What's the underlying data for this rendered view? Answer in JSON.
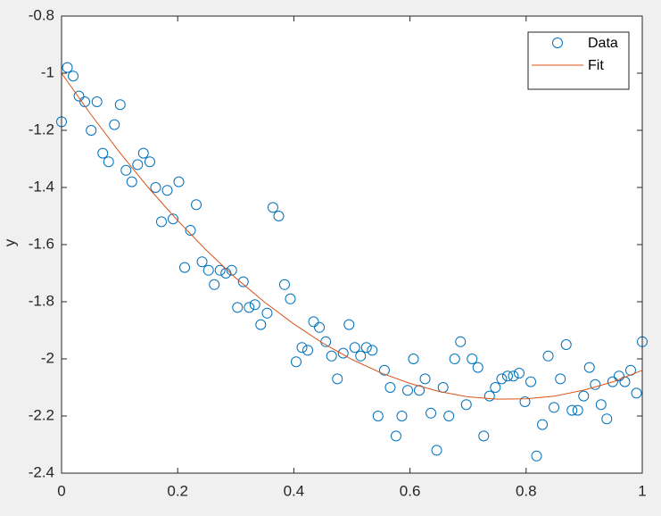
{
  "chart_data": {
    "type": "scatter",
    "ylabel": "y",
    "xlim": [
      0,
      1
    ],
    "ylim": [
      -2.4,
      -0.8
    ],
    "xticks": [
      0,
      0.2,
      0.4,
      0.6,
      0.8,
      1
    ],
    "yticks": [
      -2.4,
      -2.2,
      -2,
      -1.8,
      -1.6,
      -1.4,
      -1.2,
      -1,
      -0.8
    ],
    "grid": false,
    "legend": "northeast",
    "series": [
      {
        "name": "Data",
        "color": "#0072bd",
        "type": "scatter",
        "x": [
          0,
          0.01,
          0.02,
          0.03,
          0.04,
          0.051,
          0.061,
          0.071,
          0.081,
          0.091,
          0.101,
          0.111,
          0.121,
          0.131,
          0.141,
          0.152,
          0.162,
          0.172,
          0.182,
          0.192,
          0.202,
          0.212,
          0.222,
          0.232,
          0.242,
          0.253,
          0.263,
          0.273,
          0.283,
          0.293,
          0.303,
          0.313,
          0.323,
          0.333,
          0.343,
          0.354,
          0.364,
          0.374,
          0.384,
          0.394,
          0.404,
          0.414,
          0.424,
          0.434,
          0.444,
          0.455,
          0.465,
          0.475,
          0.485,
          0.495,
          0.505,
          0.515,
          0.525,
          0.535,
          0.545,
          0.556,
          0.566,
          0.576,
          0.586,
          0.596,
          0.606,
          0.616,
          0.626,
          0.636,
          0.646,
          0.657,
          0.667,
          0.677,
          0.687,
          0.697,
          0.707,
          0.717,
          0.727,
          0.737,
          0.747,
          0.758,
          0.768,
          0.778,
          0.788,
          0.798,
          0.808,
          0.818,
          0.828,
          0.838,
          0.848,
          0.859,
          0.869,
          0.879,
          0.889,
          0.899,
          0.909,
          0.919,
          0.929,
          0.939,
          0.949,
          0.96,
          0.97,
          0.98,
          0.99,
          1
        ],
        "values": [
          -1.17,
          -0.98,
          -1.01,
          -1.08,
          -1.1,
          -1.2,
          -1.1,
          -1.28,
          -1.31,
          -1.18,
          -1.11,
          -1.34,
          -1.38,
          -1.32,
          -1.28,
          -1.31,
          -1.4,
          -1.52,
          -1.41,
          -1.51,
          -1.38,
          -1.68,
          -1.55,
          -1.46,
          -1.66,
          -1.69,
          -1.74,
          -1.69,
          -1.7,
          -1.69,
          -1.82,
          -1.73,
          -1.82,
          -1.81,
          -1.88,
          -1.84,
          -1.47,
          -1.5,
          -1.74,
          -1.79,
          -2.01,
          -1.96,
          -1.97,
          -1.87,
          -1.89,
          -1.94,
          -1.99,
          -2.07,
          -1.98,
          -1.88,
          -1.96,
          -1.99,
          -1.96,
          -1.97,
          -2.2,
          -2.04,
          -2.1,
          -2.27,
          -2.2,
          -2.11,
          -2,
          -2.11,
          -2.07,
          -2.19,
          -2.32,
          -2.1,
          -2.2,
          -2,
          -1.94,
          -2.16,
          -2,
          -2.03,
          -2.27,
          -2.13,
          -2.1,
          -2.07,
          -2.06,
          -2.06,
          -2.05,
          -2.15,
          -2.08,
          -2.34,
          -2.23,
          -1.99,
          -2.17,
          -2.07,
          -1.95,
          -2.18,
          -2.18,
          -2.13,
          -2.03,
          -2.09,
          -2.16,
          -2.21,
          -2.08,
          -2.06,
          -2.08,
          -2.04,
          -2.12,
          -1.94
        ]
      },
      {
        "name": "Fit",
        "color": "#d95319",
        "type": "line",
        "x": [
          0,
          0.05,
          0.1,
          0.15,
          0.2,
          0.25,
          0.3,
          0.35,
          0.4,
          0.45,
          0.5,
          0.55,
          0.6,
          0.65,
          0.7,
          0.75,
          0.8,
          0.85,
          0.9,
          0.95,
          1
        ],
        "values": [
          -1,
          -1.143,
          -1.277,
          -1.402,
          -1.516,
          -1.621,
          -1.717,
          -1.802,
          -1.878,
          -1.945,
          -2.002,
          -2.049,
          -2.086,
          -2.114,
          -2.133,
          -2.141,
          -2.14,
          -2.13,
          -2.109,
          -2.08,
          -2.04
        ]
      }
    ]
  }
}
